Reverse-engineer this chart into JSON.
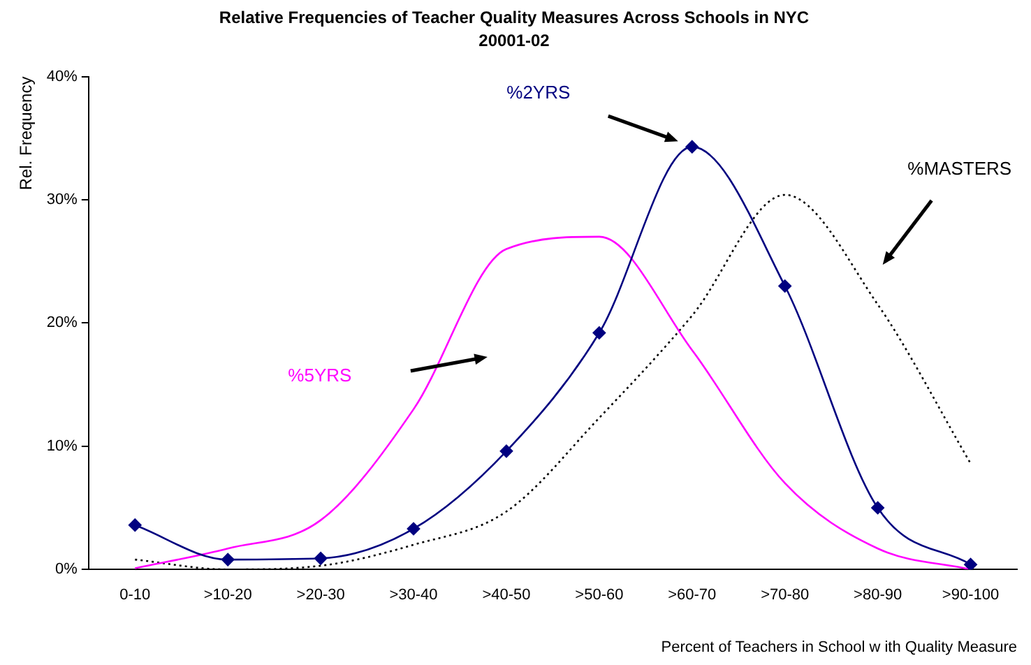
{
  "chart_data": {
    "type": "line",
    "title": "Relative Frequencies of Teacher Quality Measures Across Schools in NYC",
    "subtitle": "20001-02",
    "xlabel": "Percent of Teachers in School w ith Quality Measure",
    "ylabel": "Rel. Frequency",
    "categories": [
      "0-10",
      ">10-20",
      ">20-30",
      ">30-40",
      ">40-50",
      ">50-60",
      ">60-70",
      ">70-80",
      ">80-90",
      ">90-100"
    ],
    "series": [
      {
        "name": "%2YRS",
        "color": "#000080",
        "marker": "diamond",
        "line_style": "solid",
        "values": [
          3.6,
          0.8,
          0.9,
          3.3,
          9.6,
          19.2,
          34.3,
          23,
          5,
          0.4
        ]
      },
      {
        "name": "%5YRS",
        "color": "#ff00ff",
        "marker": "none",
        "line_style": "solid",
        "values": [
          0.1,
          1.7,
          4,
          13,
          26,
          27,
          17.8,
          7,
          1.7,
          0
        ]
      },
      {
        "name": "%MASTERS",
        "color": "#000000",
        "marker": "none",
        "line_style": "dotted",
        "values": [
          0.8,
          0,
          0.3,
          2,
          4.7,
          12.3,
          20.6,
          30.4,
          21.5,
          8.6
        ]
      }
    ],
    "ylim": [
      0,
      40
    ],
    "yticks": [
      {
        "value": 0,
        "label": "0%"
      },
      {
        "value": 10,
        "label": "10%"
      },
      {
        "value": 20,
        "label": "20%"
      },
      {
        "value": 30,
        "label": "30%"
      },
      {
        "value": 40,
        "label": "40%"
      }
    ],
    "grid": false,
    "legend": false
  }
}
